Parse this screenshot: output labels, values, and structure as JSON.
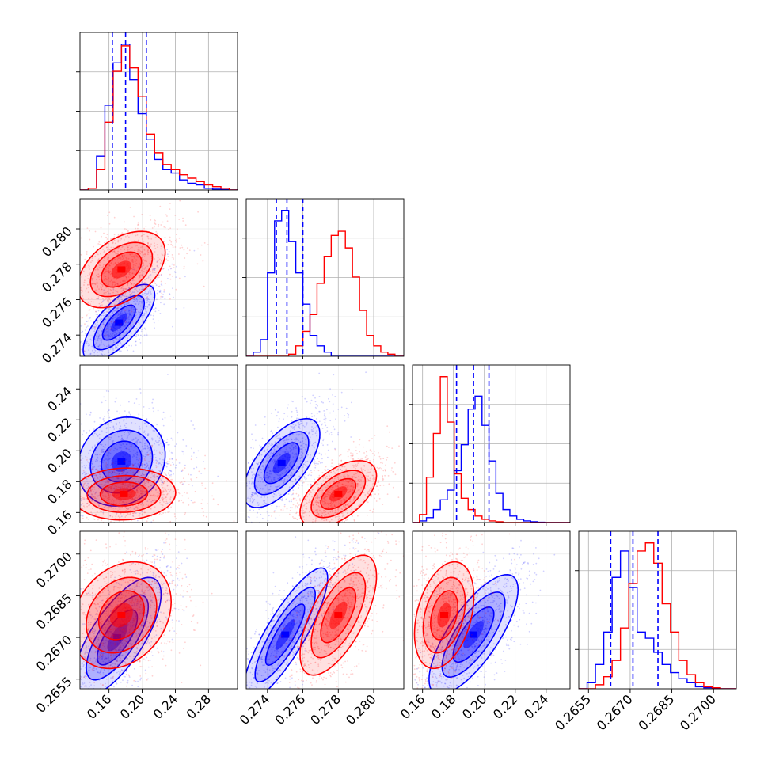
{
  "chart_data": {
    "type": "corner",
    "title": "",
    "grid": true,
    "colors": {
      "series_a": "#0000ff",
      "series_b": "#ff0000"
    },
    "series": [
      {
        "color": "#0000ff",
        "mean": [
          0.185,
          0.2751,
          0.193,
          0.2671
        ]
      },
      {
        "color": "#ff0000",
        "mean": [
          0.185,
          0.278,
          0.174,
          0.2678
        ]
      }
    ],
    "parameters": [
      {
        "range": [
          0.125,
          0.315
        ],
        "ticks": [
          "0.16",
          "0.20",
          "0.24",
          "0.28"
        ],
        "tick_values": [
          0.16,
          0.2,
          0.24,
          0.28
        ]
      },
      {
        "range": [
          0.2728,
          0.2817
        ],
        "ticks": [
          "0.274",
          "0.276",
          "0.278",
          "0.280"
        ],
        "tick_values": [
          0.274,
          0.276,
          0.278,
          0.28
        ]
      },
      {
        "range": [
          0.1535,
          0.2555
        ],
        "ticks": [
          "0.16",
          "0.18",
          "0.20",
          "0.22",
          "0.24"
        ],
        "tick_values": [
          0.16,
          0.18,
          0.2,
          0.22,
          0.24
        ]
      },
      {
        "range": [
          0.26515,
          0.27082
        ],
        "ticks": [
          "0.2655",
          "0.2670",
          "0.2685",
          "0.2700"
        ],
        "tick_values": [
          0.2655,
          0.267,
          0.2685,
          0.27
        ]
      }
    ],
    "quantiles": [
      [
        0.164,
        0.18,
        0.205
      ],
      [
        0.2745,
        0.2751,
        0.276
      ],
      [
        0.182,
        0.193,
        0.203
      ],
      [
        0.2663,
        0.2671,
        0.268
      ]
    ],
    "hist1d": [
      {
        "edges": [
          0.125,
          0.135,
          0.145,
          0.155,
          0.165,
          0.175,
          0.185,
          0.195,
          0.205,
          0.215,
          0.225,
          0.235,
          0.245,
          0.255,
          0.265,
          0.275,
          0.285,
          0.295,
          0.305,
          0.315
        ],
        "blue": [
          0,
          1,
          20,
          50,
          75,
          86,
          65,
          45,
          30,
          18,
          12,
          10,
          6,
          4,
          3,
          1,
          0.5,
          0.2,
          0
        ],
        "red": [
          0,
          1,
          12,
          40,
          70,
          85,
          72,
          55,
          33,
          22,
          15,
          12,
          9,
          7,
          5,
          3,
          2,
          1,
          0
        ]
      },
      {
        "edges": [
          0.2728,
          0.2732,
          0.2736,
          0.274,
          0.2744,
          0.2748,
          0.2752,
          0.2756,
          0.276,
          0.2764,
          0.2768,
          0.2772,
          0.2776,
          0.278,
          0.2784,
          0.2788,
          0.2792,
          0.2796,
          0.28,
          0.2804,
          0.2808,
          0.2812,
          0.2817
        ],
        "blue": [
          0,
          2,
          8,
          40,
          65,
          70,
          55,
          40,
          25,
          10,
          5,
          2,
          0,
          0,
          0,
          0,
          0,
          0,
          0,
          0,
          0,
          0
        ],
        "red": [
          0,
          0,
          0,
          0,
          0,
          0,
          1,
          5,
          12,
          20,
          35,
          48,
          58,
          60,
          52,
          38,
          22,
          10,
          5,
          2,
          1,
          0
        ]
      },
      {
        "edges": [
          0.1535,
          0.158,
          0.1625,
          0.167,
          0.1715,
          0.176,
          0.1805,
          0.185,
          0.1895,
          0.194,
          0.1985,
          0.203,
          0.2075,
          0.212,
          0.2165,
          0.221,
          0.2255,
          0.23,
          0.2345,
          0.239,
          0.2555
        ],
        "blue": [
          0,
          1,
          3,
          8,
          14,
          20,
          32,
          48,
          70,
          78,
          60,
          38,
          18,
          8,
          4,
          2,
          1,
          0.5,
          0.2,
          0
        ],
        "red": [
          0,
          5,
          28,
          55,
          90,
          62,
          30,
          15,
          8,
          4,
          2,
          1,
          0.5,
          0,
          0,
          0,
          0,
          0,
          0,
          0
        ]
      },
      {
        "edges": [
          0.26515,
          0.26545,
          0.26575,
          0.26605,
          0.26635,
          0.26665,
          0.26695,
          0.26725,
          0.26755,
          0.26785,
          0.26815,
          0.26845,
          0.26875,
          0.26905,
          0.26935,
          0.26965,
          0.26995,
          0.27025,
          0.27082
        ],
        "blue": [
          0,
          3,
          12,
          28,
          55,
          68,
          50,
          28,
          25,
          18,
          12,
          8,
          5,
          3,
          1,
          0.5,
          0.2,
          0
        ],
        "red": [
          0,
          0,
          2,
          6,
          14,
          30,
          52,
          68,
          72,
          62,
          42,
          28,
          14,
          7,
          3,
          1,
          0.5,
          0
        ]
      }
    ],
    "pairs": [
      {
        "x": 0,
        "y": 1,
        "blue": {
          "center": [
            0.172,
            0.2747
          ],
          "sd": [
            0.018,
            0.0009
          ],
          "rho": 0.72
        },
        "red": {
          "center": [
            0.175,
            0.2777
          ],
          "sd": [
            0.022,
            0.0009
          ],
          "rho": 0.45
        }
      },
      {
        "x": 0,
        "y": 2,
        "blue": {
          "center": [
            0.175,
            0.193
          ],
          "sd": [
            0.022,
            0.012
          ],
          "rho": 0.15
        },
        "red": {
          "center": [
            0.178,
            0.172
          ],
          "sd": [
            0.026,
            0.007
          ],
          "rho": 0.05
        }
      },
      {
        "x": 0,
        "y": 3,
        "blue": {
          "center": [
            0.17,
            0.267
          ],
          "sd": [
            0.022,
            0.0009
          ],
          "rho": 0.72
        },
        "red": {
          "center": [
            0.175,
            0.2678
          ],
          "sd": [
            0.025,
            0.0008
          ],
          "rho": 0.25
        }
      },
      {
        "x": 1,
        "y": 2,
        "blue": {
          "center": [
            0.2748,
            0.192
          ],
          "sd": [
            0.0009,
            0.012
          ],
          "rho": 0.65
        },
        "red": {
          "center": [
            0.278,
            0.172
          ],
          "sd": [
            0.0009,
            0.009
          ],
          "rho": 0.55
        }
      },
      {
        "x": 1,
        "y": 3,
        "blue": {
          "center": [
            0.275,
            0.2671
          ],
          "sd": [
            0.001,
            0.001
          ],
          "rho": 0.85
        },
        "red": {
          "center": [
            0.278,
            0.2678
          ],
          "sd": [
            0.0009,
            0.0009
          ],
          "rho": 0.65
        }
      },
      {
        "x": 2,
        "y": 3,
        "blue": {
          "center": [
            0.193,
            0.2671
          ],
          "sd": [
            0.012,
            0.0009
          ],
          "rho": 0.75
        },
        "red": {
          "center": [
            0.174,
            0.2678
          ],
          "sd": [
            0.008,
            0.0008
          ],
          "rho": 0.35
        }
      }
    ]
  }
}
